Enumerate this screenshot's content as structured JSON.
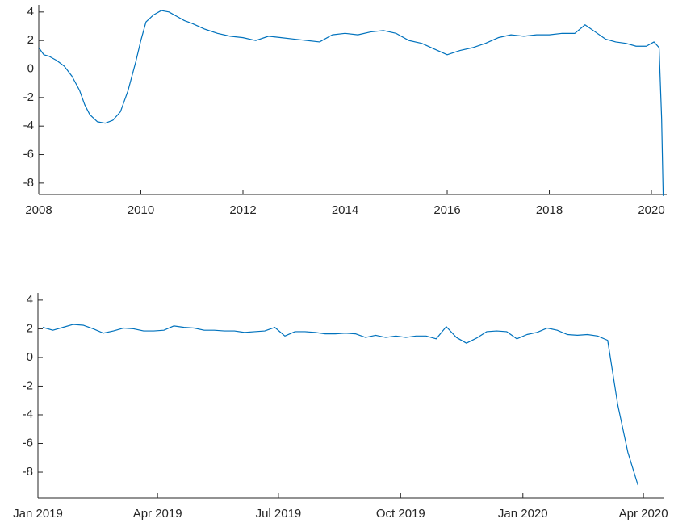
{
  "chart_data": [
    {
      "type": "line",
      "color": "#0072bd",
      "x": [
        2008.0,
        2008.1,
        2008.2,
        2008.35,
        2008.5,
        2008.65,
        2008.8,
        2008.9,
        2009.0,
        2009.15,
        2009.3,
        2009.45,
        2009.6,
        2009.75,
        2009.9,
        2010.0,
        2010.1,
        2010.25,
        2010.4,
        2010.55,
        2010.7,
        2010.85,
        2011.0,
        2011.25,
        2011.5,
        2011.75,
        2012.0,
        2012.25,
        2012.5,
        2012.75,
        2013.0,
        2013.25,
        2013.5,
        2013.75,
        2014.0,
        2014.25,
        2014.5,
        2014.75,
        2015.0,
        2015.25,
        2015.5,
        2015.75,
        2016.0,
        2016.25,
        2016.5,
        2016.75,
        2017.0,
        2017.25,
        2017.5,
        2017.75,
        2018.0,
        2018.25,
        2018.5,
        2018.7,
        2018.9,
        2019.1,
        2019.3,
        2019.5,
        2019.7,
        2019.9,
        2020.05,
        2020.15,
        2020.2,
        2020.23
      ],
      "values": [
        1.5,
        1.0,
        0.9,
        0.6,
        0.2,
        -0.5,
        -1.5,
        -2.5,
        -3.2,
        -3.7,
        -3.8,
        -3.6,
        -3.0,
        -1.5,
        0.5,
        2.0,
        3.3,
        3.8,
        4.1,
        4.0,
        3.7,
        3.4,
        3.2,
        2.8,
        2.5,
        2.3,
        2.2,
        2.0,
        2.3,
        2.2,
        2.1,
        2.0,
        1.9,
        2.4,
        2.5,
        2.4,
        2.6,
        2.7,
        2.5,
        2.0,
        1.8,
        1.4,
        1.0,
        1.3,
        1.5,
        1.8,
        2.2,
        2.4,
        2.3,
        2.4,
        2.4,
        2.5,
        2.5,
        3.1,
        2.6,
        2.1,
        1.9,
        1.8,
        1.6,
        1.6,
        1.9,
        1.5,
        -3.5,
        -8.9
      ],
      "xlim": [
        2008,
        2020.3
      ],
      "xticks": [
        2008,
        2010,
        2012,
        2014,
        2016,
        2018,
        2020
      ],
      "ylim": [
        -8.8,
        4.5
      ],
      "yticks": [
        -8,
        -6,
        -4,
        -2,
        0,
        2,
        4
      ]
    },
    {
      "type": "line",
      "color": "#0072bd",
      "x": [
        2019.01,
        2019.0308,
        2019.0516,
        2019.0724,
        2019.0932,
        2019.114,
        2019.1348,
        2019.1556,
        2019.1764,
        2019.1972,
        2019.218,
        2019.2388,
        2019.2596,
        2019.2804,
        2019.3012,
        2019.322,
        2019.3428,
        2019.3636,
        2019.3844,
        2019.4052,
        2019.426,
        2019.4468,
        2019.4676,
        2019.4884,
        2019.5092,
        2019.53,
        2019.5508,
        2019.5716,
        2019.5924,
        2019.6132,
        2019.634,
        2019.6548,
        2019.6756,
        2019.6964,
        2019.7172,
        2019.738,
        2019.7588,
        2019.7796,
        2019.8004,
        2019.8212,
        2019.842,
        2019.8628,
        2019.8836,
        2019.9044,
        2019.9252,
        2019.946,
        2019.9668,
        2019.9876,
        2020.0084,
        2020.0292,
        2020.05,
        2020.0708,
        2020.0916,
        2020.1124,
        2020.1332,
        2020.154,
        2020.1748,
        2020.1956,
        2020.2164,
        2020.2372
      ],
      "values": [
        2.1,
        1.9,
        2.1,
        2.3,
        2.25,
        2.0,
        1.7,
        1.85,
        2.05,
        2.0,
        1.85,
        1.85,
        1.9,
        2.2,
        2.1,
        2.05,
        1.9,
        1.9,
        1.85,
        1.85,
        1.75,
        1.8,
        1.85,
        2.1,
        1.5,
        1.8,
        1.8,
        1.75,
        1.65,
        1.65,
        1.7,
        1.65,
        1.4,
        1.55,
        1.4,
        1.5,
        1.4,
        1.5,
        1.5,
        1.3,
        2.15,
        1.4,
        1.0,
        1.35,
        1.8,
        1.85,
        1.8,
        1.3,
        1.6,
        1.75,
        2.05,
        1.9,
        1.6,
        1.55,
        1.6,
        1.5,
        1.2,
        -3.3,
        -6.6,
        -8.9
      ],
      "xlim": [
        2019,
        2020.29
      ],
      "xticks": [
        {
          "value": 2019,
          "label": "Jan 2019"
        },
        {
          "value": 2019.2466,
          "label": "Apr 2019"
        },
        {
          "value": 2019.4959,
          "label": "Jul 2019"
        },
        {
          "value": 2019.7479,
          "label": "Oct 2019"
        },
        {
          "value": 2020,
          "label": "Jan 2020"
        },
        {
          "value": 2020.2486,
          "label": "Apr 2020"
        }
      ],
      "ylim": [
        -9.8,
        4.5
      ],
      "yticks": [
        -8,
        -6,
        -4,
        -2,
        0,
        2,
        4
      ]
    }
  ]
}
